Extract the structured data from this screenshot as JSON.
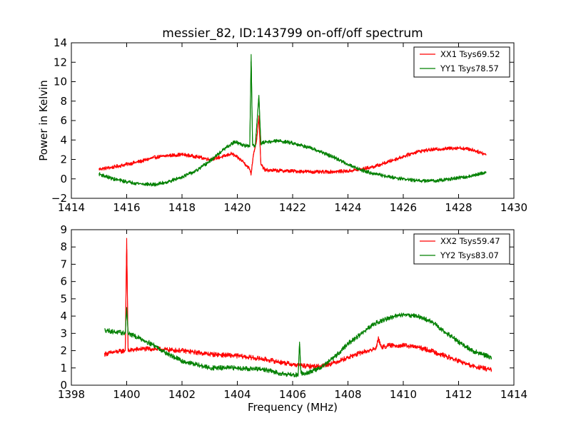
{
  "chart_data": [
    {
      "type": "line",
      "title": "messier_82, ID:143799 on-off/off spectrum",
      "xlabel": "",
      "ylabel": "Power in Kelvin",
      "xlim": [
        1414,
        1430
      ],
      "ylim": [
        -2,
        14
      ],
      "xticks": [
        1414,
        1416,
        1418,
        1420,
        1422,
        1424,
        1426,
        1428,
        1430
      ],
      "yticks": [
        -2,
        0,
        2,
        4,
        6,
        8,
        10,
        12,
        14
      ],
      "legend_position": "top-right",
      "series": [
        {
          "name": "XX1 Tsys69.52",
          "color": "#ff0000",
          "x": [
            1415,
            1415.5,
            1416,
            1416.5,
            1417,
            1417.5,
            1418,
            1418.5,
            1419,
            1419.5,
            1419.8,
            1420.2,
            1420.45,
            1420.5,
            1420.58,
            1420.7,
            1420.78,
            1420.85,
            1421,
            1421.5,
            1422,
            1422.5,
            1423,
            1423.5,
            1424,
            1424.5,
            1425,
            1425.5,
            1426,
            1426.5,
            1427,
            1427.5,
            1428,
            1428.5,
            1429
          ],
          "values": [
            1.0,
            1.2,
            1.5,
            1.8,
            2.2,
            2.4,
            2.5,
            2.3,
            2.0,
            2.3,
            2.6,
            1.8,
            1.0,
            0.5,
            2.5,
            4.0,
            6.5,
            1.5,
            0.9,
            0.85,
            0.8,
            0.75,
            0.7,
            0.75,
            0.8,
            1.0,
            1.3,
            1.8,
            2.3,
            2.8,
            3.0,
            3.1,
            3.2,
            3.0,
            2.5
          ]
        },
        {
          "name": "YY1 Tsys78.57",
          "color": "#008000",
          "x": [
            1415,
            1415.5,
            1416,
            1416.5,
            1417,
            1417.5,
            1418,
            1418.5,
            1419,
            1419.5,
            1419.9,
            1420.2,
            1420.45,
            1420.5,
            1420.55,
            1420.65,
            1420.78,
            1420.85,
            1421,
            1421.5,
            1422,
            1422.5,
            1423,
            1423.5,
            1424,
            1424.5,
            1425,
            1425.5,
            1426,
            1426.5,
            1427,
            1427.5,
            1428,
            1428.5,
            1429
          ],
          "values": [
            0.5,
            0.0,
            -0.3,
            -0.5,
            -0.6,
            -0.3,
            0.2,
            0.8,
            1.8,
            3.0,
            3.8,
            3.5,
            3.3,
            12.8,
            3.5,
            3.4,
            8.6,
            3.6,
            3.8,
            3.9,
            3.7,
            3.3,
            2.8,
            2.2,
            1.5,
            0.9,
            0.5,
            0.2,
            0.0,
            -0.2,
            -0.2,
            -0.1,
            0.1,
            0.3,
            0.7
          ]
        }
      ]
    },
    {
      "type": "line",
      "title": "",
      "xlabel": "Frequency (MHz)",
      "ylabel": "",
      "xlim": [
        1398,
        1414
      ],
      "ylim": [
        0,
        9
      ],
      "xticks": [
        1398,
        1400,
        1402,
        1404,
        1406,
        1408,
        1410,
        1412,
        1414
      ],
      "yticks": [
        0,
        1,
        2,
        3,
        4,
        5,
        6,
        7,
        8,
        9
      ],
      "legend_position": "top-right",
      "series": [
        {
          "name": "XX2 Tsys59.47",
          "color": "#ff0000",
          "x": [
            1399.2,
            1399.5,
            1399.95,
            1400.0,
            1400.05,
            1400.5,
            1401,
            1402,
            1403,
            1404,
            1405,
            1406,
            1406.5,
            1407,
            1407.5,
            1408,
            1408.5,
            1409,
            1409.1,
            1409.2,
            1409.5,
            1410,
            1410.5,
            1411,
            1411.5,
            1412,
            1412.5,
            1413,
            1413.2
          ],
          "values": [
            1.8,
            1.9,
            2.0,
            8.5,
            2.0,
            2.1,
            2.1,
            2.0,
            1.8,
            1.7,
            1.5,
            1.2,
            1.1,
            1.1,
            1.3,
            1.6,
            1.9,
            2.1,
            2.7,
            2.2,
            2.3,
            2.3,
            2.2,
            2.0,
            1.7,
            1.4,
            1.1,
            0.95,
            0.9
          ]
        },
        {
          "name": "YY2 Tsys83.07",
          "color": "#008000",
          "x": [
            1399.2,
            1399.5,
            1399.95,
            1400.0,
            1400.05,
            1400.5,
            1401,
            1401.5,
            1402,
            1403,
            1404,
            1405,
            1405.5,
            1406,
            1406.2,
            1406.25,
            1406.3,
            1406.5,
            1407,
            1407.5,
            1408,
            1408.5,
            1409,
            1409.5,
            1410,
            1410.5,
            1411,
            1411.5,
            1412,
            1412.5,
            1413,
            1413.2
          ],
          "values": [
            3.2,
            3.1,
            3.0,
            4.5,
            3.0,
            2.7,
            2.3,
            1.8,
            1.4,
            1.0,
            1.0,
            0.9,
            0.7,
            0.6,
            0.6,
            2.5,
            0.7,
            0.7,
            1.0,
            1.6,
            2.4,
            3.0,
            3.6,
            3.9,
            4.1,
            4.0,
            3.7,
            3.1,
            2.5,
            2.0,
            1.7,
            1.6
          ]
        }
      ]
    }
  ]
}
